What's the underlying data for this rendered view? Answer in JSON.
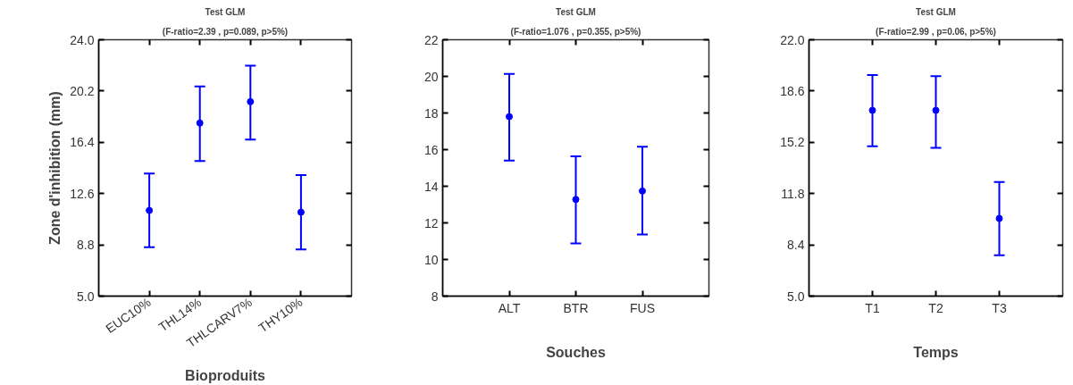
{
  "chart_data": [
    {
      "type": "scatter",
      "title": "Test GLM",
      "subtitle": "(F-ratio=2.39 , p=0.089, p>5%)",
      "xlabel": "Bioproduits",
      "ylabel": "Zone d'inhibition (mm)",
      "categories": [
        "EUC10%",
        "THL14%",
        "THLCARV7%",
        "THY10%"
      ],
      "series": [
        {
          "color": "#0000ff",
          "values": [
            11.35,
            17.83,
            19.41,
            11.22
          ],
          "errors": [
            [
              8.62,
              14.08
            ],
            [
              15.02,
              20.54
            ],
            [
              16.6,
              22.08
            ],
            [
              8.46,
              13.97
            ]
          ]
        }
      ],
      "ylim": [
        5.0,
        24.0
      ],
      "yticks": [
        {
          "value": 5.0,
          "label": "5.0"
        },
        {
          "value": 8.8,
          "label": "8.8"
        },
        {
          "value": 12.6,
          "label": "12.6"
        },
        {
          "value": 16.4,
          "label": "16.4"
        },
        {
          "value": 20.2,
          "label": "20.2"
        },
        {
          "value": 24.0,
          "label": "24.0"
        }
      ],
      "marker": "circle",
      "grid": false
    },
    {
      "type": "scatter",
      "title": "Test GLM",
      "subtitle": "(F-ratio=1.076 , p=0.355, p>5%)",
      "xlabel": "Souches",
      "categories": [
        "ALT",
        "BTR",
        "FUS"
      ],
      "series": [
        {
          "color": "#0000ff",
          "values": [
            17.8,
            13.28,
            13.74
          ],
          "errors": [
            [
              15.4,
              20.14
            ],
            [
              10.88,
              15.64
            ],
            [
              11.36,
              16.16
            ]
          ]
        }
      ],
      "ylim": [
        8,
        22
      ],
      "yticks": [
        8,
        10,
        12,
        14,
        16,
        18,
        20,
        22
      ],
      "marker": "circle",
      "grid": false
    },
    {
      "type": "scatter",
      "title": "Test GLM",
      "subtitle": "(F-ratio=2.99 , p=0.06, p>5%)",
      "xlabel": "Temps",
      "categories": [
        "T1",
        "T2",
        "T3"
      ],
      "series": [
        {
          "color": "#0000ff",
          "values": [
            17.32,
            17.32,
            10.15
          ],
          "errors": [
            [
              14.93,
              19.66
            ],
            [
              14.83,
              19.59
            ],
            [
              7.71,
              12.56
            ]
          ]
        }
      ],
      "ylim": [
        5.0,
        22.0
      ],
      "yticks": [
        {
          "value": 5.0,
          "label": "5.0"
        },
        {
          "value": 8.4,
          "label": "8.4"
        },
        {
          "value": 11.8,
          "label": "11.8"
        },
        {
          "value": 15.2,
          "label": "15.2"
        },
        {
          "value": 18.6,
          "label": "18.6"
        },
        {
          "value": 22.0,
          "label": "22.0"
        }
      ],
      "marker": "circle",
      "grid": false
    }
  ]
}
